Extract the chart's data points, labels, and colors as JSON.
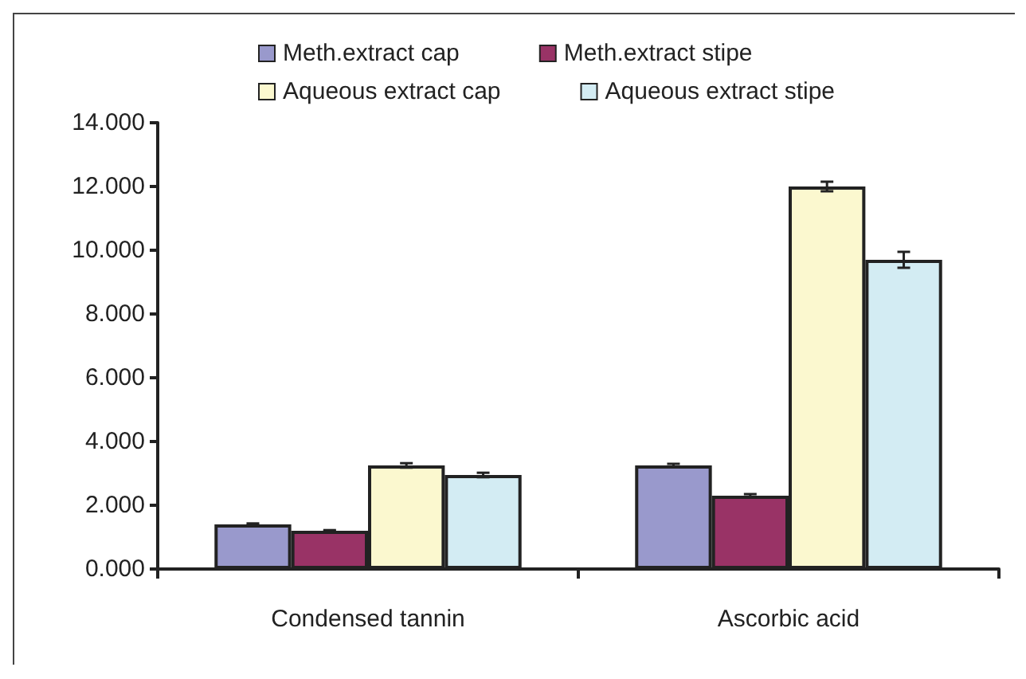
{
  "chart_data": {
    "type": "bar",
    "categories": [
      "Condensed tannin",
      "Ascorbic acid"
    ],
    "series": [
      {
        "name": "Meth.extract cap",
        "color": "#9999cc",
        "values": [
          1.4,
          3.25
        ],
        "errors": [
          0.03,
          0.05
        ]
      },
      {
        "name": "Meth.extract stipe",
        "color": "#993366",
        "values": [
          1.2,
          2.3
        ],
        "errors": [
          0.02,
          0.05
        ]
      },
      {
        "name": "Aqueous extract cap",
        "color": "#fbf8cf",
        "values": [
          3.25,
          12.0
        ],
        "errors": [
          0.07,
          0.15
        ]
      },
      {
        "name": "Aqueous extract stipe",
        "color": "#d3ecf3",
        "values": [
          2.95,
          9.7
        ],
        "errors": [
          0.07,
          0.25
        ]
      }
    ],
    "ylim": [
      0,
      14
    ],
    "yticks": [
      {
        "value": 0,
        "label": "0.000"
      },
      {
        "value": 2,
        "label": "2.000"
      },
      {
        "value": 4,
        "label": "4.000"
      },
      {
        "value": 6,
        "label": "6.000"
      },
      {
        "value": 8,
        "label": "8.000"
      },
      {
        "value": 10,
        "label": "10.000"
      },
      {
        "value": 12,
        "label": "12.000"
      },
      {
        "value": 14,
        "label": "14.000"
      }
    ],
    "grid": false,
    "legend": "top"
  }
}
